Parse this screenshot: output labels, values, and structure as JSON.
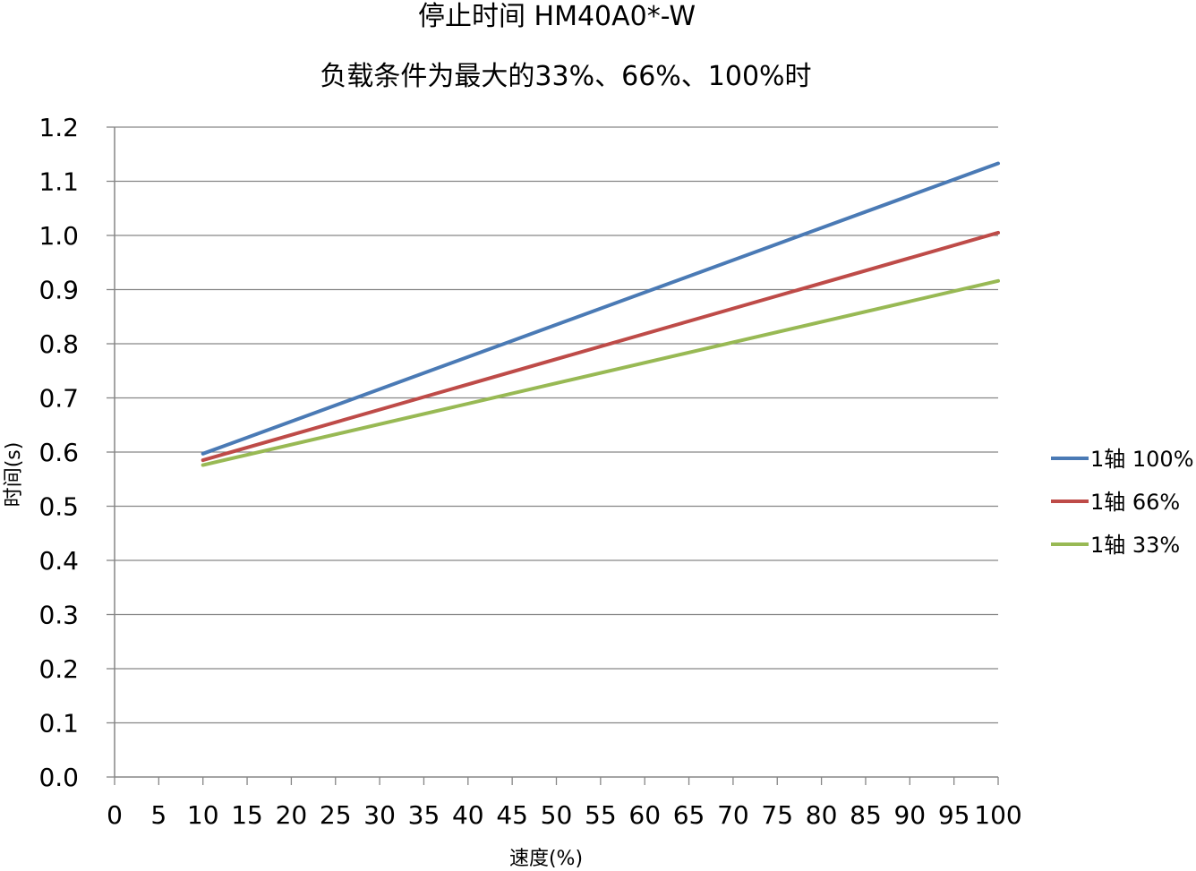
{
  "chart_data": {
    "type": "line",
    "title": "停止时间 HM40A0*-W",
    "subtitle": "负载条件为最大的33%、66%、100%时",
    "xlabel": "速度(%)",
    "ylabel": "时间(s)",
    "xlim": [
      0,
      100
    ],
    "ylim": [
      0,
      1.2
    ],
    "x_ticks": [
      "0",
      "5",
      "10",
      "15",
      "20",
      "25",
      "30",
      "35",
      "40",
      "45",
      "50",
      "55",
      "60",
      "65",
      "70",
      "75",
      "80",
      "85",
      "90",
      "95",
      "100"
    ],
    "y_ticks": [
      "0.0",
      "0.1",
      "0.2",
      "0.3",
      "0.4",
      "0.5",
      "0.6",
      "0.7",
      "0.8",
      "0.9",
      "1.0",
      "1.1",
      "1.2"
    ],
    "grid": "horizontal",
    "legend_position": "right",
    "series": [
      {
        "name": "1轴 100%",
        "color": "#4a7ab5",
        "x": [
          10,
          100
        ],
        "y": [
          0.597,
          1.133
        ]
      },
      {
        "name": "1轴 66%",
        "color": "#be4b48",
        "x": [
          10,
          100
        ],
        "y": [
          0.585,
          1.005
        ]
      },
      {
        "name": "1轴 33%",
        "color": "#98b954",
        "x": [
          10,
          100
        ],
        "y": [
          0.576,
          0.916
        ]
      }
    ]
  }
}
